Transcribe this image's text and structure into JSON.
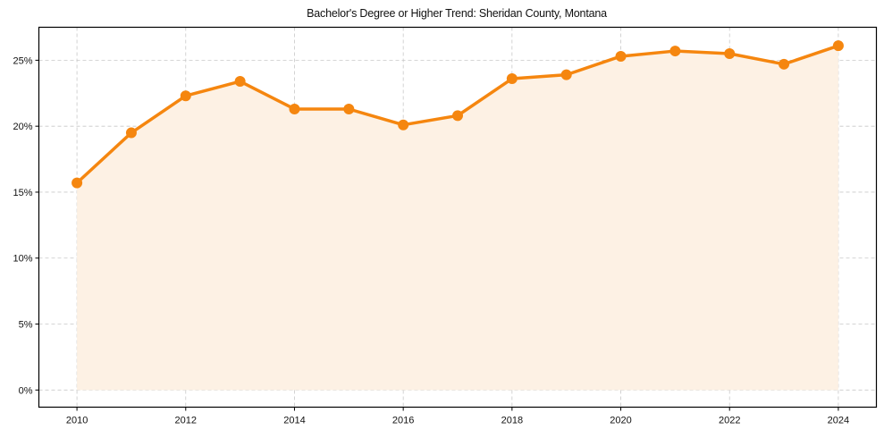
{
  "chart_data": {
    "type": "area",
    "title": "Bachelor's Degree or Higher Trend: Sheridan County, Montana",
    "xlabel": "",
    "ylabel": "",
    "x": [
      2010,
      2011,
      2012,
      2013,
      2014,
      2015,
      2016,
      2017,
      2018,
      2019,
      2020,
      2021,
      2022,
      2023,
      2024
    ],
    "series": [
      {
        "name": "Bachelor's Degree or Higher",
        "values": [
          15.7,
          19.5,
          22.3,
          23.4,
          21.3,
          21.3,
          20.1,
          20.8,
          23.6,
          23.9,
          25.3,
          25.7,
          25.5,
          24.7,
          26.1
        ],
        "color": "#f5860f",
        "fill_color": "#fdf1e4",
        "markers": true
      }
    ],
    "xticks": [
      "2010",
      "2012",
      "2014",
      "2016",
      "2018",
      "2020",
      "2022",
      "2024"
    ],
    "yticks": [
      "0%",
      "5%",
      "10%",
      "15%",
      "20%",
      "25%"
    ],
    "ytick_values": [
      0,
      5,
      10,
      15,
      20,
      25
    ],
    "xlim": [
      2009.3,
      2024.7
    ],
    "ylim": [
      -1.3,
      27.5
    ],
    "grid": true,
    "grid_style": "dashed",
    "legend": null
  }
}
